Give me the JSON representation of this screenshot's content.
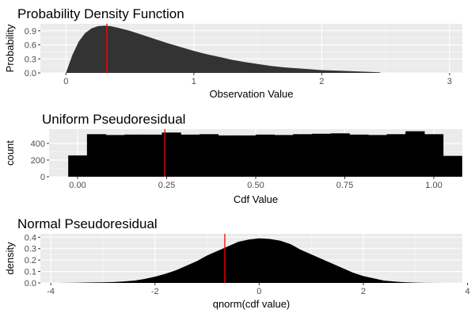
{
  "chart_data": [
    {
      "type": "area",
      "title": "Probability Density Function",
      "xlabel": "Observation Value",
      "ylabel": "Probability",
      "xlim": [
        -0.2,
        3.1
      ],
      "ylim": [
        0,
        1.05
      ],
      "x_ticks": [
        0,
        1,
        2,
        3
      ],
      "x_tick_labels": [
        "0",
        "1",
        "2",
        "3"
      ],
      "y_ticks": [
        0.0,
        0.3,
        0.6,
        0.9
      ],
      "y_tick_labels": [
        "0.0",
        "0.3",
        "0.6",
        "0.9"
      ],
      "fill_color": "#333333",
      "marker_color": "#ff0000",
      "vline_x": 0.32,
      "series": [
        {
          "x": [
            0,
            0.05,
            0.1,
            0.15,
            0.2,
            0.25,
            0.3,
            0.35,
            0.4,
            0.5,
            0.6,
            0.7,
            0.8,
            0.9,
            1.0,
            1.1,
            1.2,
            1.3,
            1.4,
            1.5,
            1.6,
            1.7,
            1.8,
            1.9,
            2.0,
            2.1,
            2.2,
            2.3,
            2.4,
            2.46
          ],
          "y": [
            0.0,
            0.38,
            0.67,
            0.85,
            0.95,
            1.0,
            1.01,
            1.0,
            0.97,
            0.9,
            0.81,
            0.72,
            0.63,
            0.55,
            0.47,
            0.4,
            0.34,
            0.28,
            0.23,
            0.19,
            0.15,
            0.12,
            0.1,
            0.08,
            0.06,
            0.05,
            0.04,
            0.03,
            0.02,
            0.01
          ]
        }
      ]
    },
    {
      "type": "bar",
      "title": "Uniform Pseudoresidual",
      "xlabel": "Cdf Value",
      "ylabel": "count",
      "xlim": [
        -0.08,
        1.08
      ],
      "ylim": [
        0,
        570
      ],
      "x_ticks": [
        0.0,
        0.25,
        0.5,
        0.75,
        1.0
      ],
      "x_tick_labels": [
        "0.00",
        "0.25",
        "0.50",
        "0.75",
        "1.00"
      ],
      "y_ticks": [
        0,
        200,
        400
      ],
      "y_tick_labels": [
        "0",
        "200",
        "400"
      ],
      "fill_color": "#000000",
      "marker_color": "#ff0000",
      "vline_x": 0.245,
      "bin_start": -0.0263,
      "bin_width": 0.0526,
      "values": [
        255,
        510,
        500,
        505,
        505,
        530,
        505,
        510,
        495,
        495,
        505,
        500,
        510,
        515,
        520,
        505,
        500,
        510,
        545,
        510,
        250
      ]
    },
    {
      "type": "area",
      "title": "Normal Pseudoresidual",
      "xlabel": "qnorm(cdf value)",
      "ylabel": "density",
      "xlim": [
        -4.2,
        3.9
      ],
      "ylim": [
        0,
        0.43
      ],
      "x_ticks": [
        -4,
        -2,
        0,
        2,
        4
      ],
      "x_tick_labels": [
        "-4",
        "-2",
        "0",
        "2",
        "4"
      ],
      "y_ticks": [
        0.0,
        0.1,
        0.2,
        0.3,
        0.4
      ],
      "y_tick_labels": [
        "0.0",
        "0.1",
        "0.2",
        "0.3",
        "0.4"
      ],
      "fill_color": "#000000",
      "marker_color": "#ff0000",
      "vline_x": -0.66,
      "series": [
        {
          "x": [
            -3.9,
            -3.5,
            -3.2,
            -3.0,
            -2.8,
            -2.6,
            -2.4,
            -2.2,
            -2.0,
            -1.8,
            -1.6,
            -1.4,
            -1.2,
            -1.0,
            -0.8,
            -0.6,
            -0.4,
            -0.2,
            0.0,
            0.2,
            0.4,
            0.6,
            0.8,
            1.0,
            1.2,
            1.4,
            1.6,
            1.8,
            2.0,
            2.2,
            2.4,
            2.6,
            2.8,
            3.0,
            3.2,
            3.6
          ],
          "y": [
            0.0,
            0.002,
            0.004,
            0.005,
            0.008,
            0.013,
            0.02,
            0.035,
            0.055,
            0.08,
            0.11,
            0.15,
            0.19,
            0.24,
            0.28,
            0.32,
            0.36,
            0.38,
            0.39,
            0.385,
            0.37,
            0.34,
            0.29,
            0.25,
            0.21,
            0.17,
            0.13,
            0.09,
            0.06,
            0.04,
            0.02,
            0.012,
            0.006,
            0.003,
            0.001,
            0.0
          ]
        }
      ]
    }
  ]
}
